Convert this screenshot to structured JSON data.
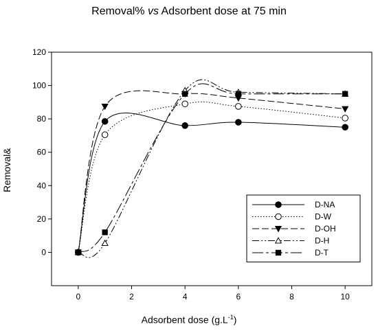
{
  "chart_data": {
    "type": "line",
    "title_parts": [
      "Removal% ",
      "vs",
      " Adsorbent dose at 75 min"
    ],
    "xlabel_main": "Adsorbent dose (g.L",
    "xlabel_sup": "-1",
    "xlabel_end": ")",
    "ylabel": "Removal&",
    "xlim": [
      -1,
      11
    ],
    "ylim": [
      -20,
      120
    ],
    "xticks": [
      0,
      2,
      4,
      6,
      8,
      10
    ],
    "yticks": [
      0,
      20,
      40,
      60,
      80,
      100,
      120
    ],
    "x": [
      0,
      1,
      4,
      6,
      10
    ],
    "series": [
      {
        "name": "D-NA",
        "values": [
          0,
          78.5,
          76,
          78,
          75
        ],
        "marker": "filled-circle",
        "dash": ""
      },
      {
        "name": "D-W",
        "values": [
          0,
          70.5,
          89,
          87.5,
          80.5
        ],
        "marker": "open-circle",
        "dash": "1.5,2.5"
      },
      {
        "name": "D-OH",
        "values": [
          0,
          87.5,
          95,
          92.5,
          86
        ],
        "marker": "filled-triangle-down",
        "dash": "10,4"
      },
      {
        "name": "D-H",
        "values": [
          0,
          5.5,
          97,
          96,
          95
        ],
        "marker": "open-triangle-up",
        "dash": "10,3,2,3,2,3"
      },
      {
        "name": "D-T",
        "values": [
          0,
          12,
          95,
          95,
          95
        ],
        "marker": "filled-square",
        "dash": "16,4,4,4"
      }
    ],
    "legend_position": "bottom-right",
    "grid": false
  }
}
